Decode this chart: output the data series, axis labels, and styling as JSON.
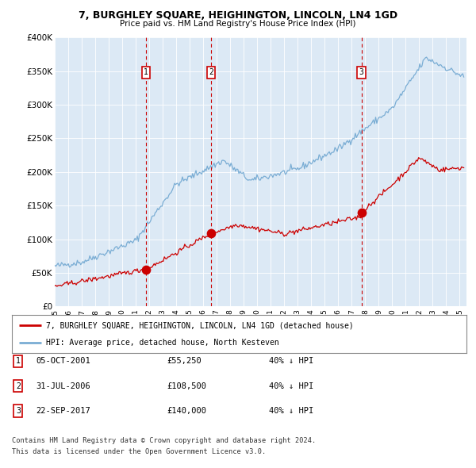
{
  "title": "7, BURGHLEY SQUARE, HEIGHINGTON, LINCOLN, LN4 1GD",
  "subtitle": "Price paid vs. HM Land Registry's House Price Index (HPI)",
  "bg_color": "#dce9f5",
  "sale_dates_num": [
    2001.76,
    2006.58,
    2017.72
  ],
  "sale_prices": [
    55250,
    108500,
    140000
  ],
  "sale_labels": [
    "1",
    "2",
    "3"
  ],
  "legend_red": "7, BURGHLEY SQUARE, HEIGHINGTON, LINCOLN, LN4 1GD (detached house)",
  "legend_blue": "HPI: Average price, detached house, North Kesteven",
  "table_rows": [
    [
      "1",
      "05-OCT-2001",
      "£55,250",
      "40% ↓ HPI"
    ],
    [
      "2",
      "31-JUL-2006",
      "£108,500",
      "40% ↓ HPI"
    ],
    [
      "3",
      "22-SEP-2017",
      "£140,000",
      "40% ↓ HPI"
    ]
  ],
  "footnote1": "Contains HM Land Registry data © Crown copyright and database right 2024.",
  "footnote2": "This data is licensed under the Open Government Licence v3.0.",
  "ylim": [
    0,
    400000
  ],
  "yticks": [
    0,
    50000,
    100000,
    150000,
    200000,
    250000,
    300000,
    350000,
    400000
  ],
  "ytick_labels": [
    "£0",
    "£50K",
    "£100K",
    "£150K",
    "£200K",
    "£250K",
    "£300K",
    "£350K",
    "£400K"
  ],
  "xlim_start": 1995.0,
  "xlim_end": 2025.5,
  "red_color": "#cc0000",
  "blue_color": "#7aadd4",
  "vline_color": "#cc0000",
  "box_color": "#cc0000"
}
